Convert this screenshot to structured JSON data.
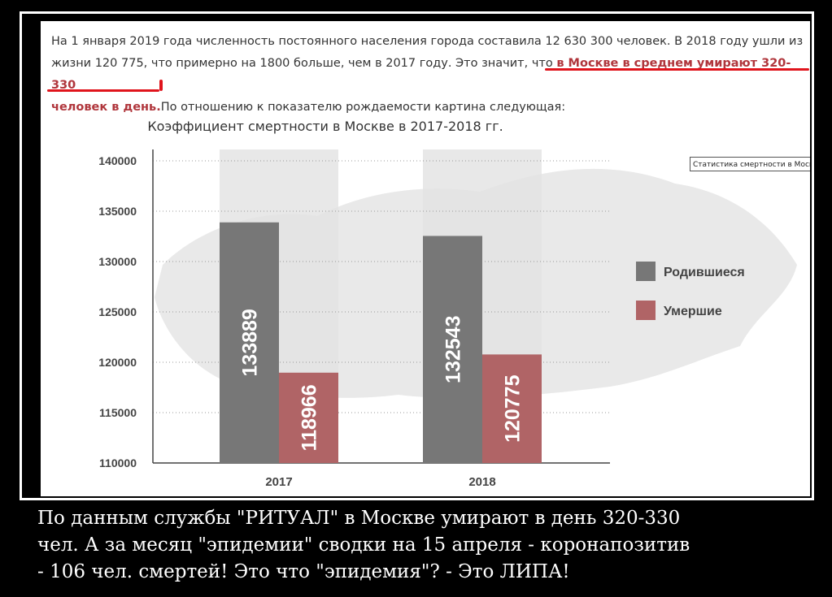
{
  "intro": {
    "line1": "На 1 января 2019 года численность постоянного населения города составила 12 630 300 человек. В 2018 году ушли из",
    "line2_plain": "жизни 120 775, что примерно на 1800 больше, чем в 2017 году. Это значит, что ",
    "line2_highlight": "в Москве в среднем умирают 320-330",
    "line3_highlight": "человек в день.",
    "line3_plain": "По отношению к показателю рождаемости картина следующая:"
  },
  "tooltip": "Статистика смертности в Москве",
  "colors": {
    "born": "#777777",
    "died": "#b06466",
    "highlight": "#b0363c",
    "underline": "#e0141c"
  },
  "chart_data": {
    "type": "bar",
    "title": "Коэффициент смертности в Москве в 2017-2018 гг.",
    "categories": [
      "2017",
      "2018"
    ],
    "series": [
      {
        "name": "Родившиеся",
        "values": [
          133889,
          132543
        ]
      },
      {
        "name": "Умершие",
        "values": [
          118966,
          120775
        ]
      }
    ],
    "data_labels": [
      [
        "133889",
        "132543"
      ],
      [
        "118966",
        "120775"
      ]
    ],
    "ylim": [
      110000,
      140000
    ],
    "yticks": [
      "110000",
      "115000",
      "120000",
      "125000",
      "130000",
      "135000",
      "140000"
    ],
    "grid": true,
    "legend": "right"
  },
  "caption": {
    "line1": "По данным службы \"РИТУАЛ\" в  Москве  умирают  в день   320-330",
    "line2": "чел. А за месяц \"эпидемии\" сводки на 15 апреля -  коронапозитив",
    "line3": "- 106 чел. смертей!  Это что \"эпидемия\"? - Это  ЛИПА!"
  }
}
